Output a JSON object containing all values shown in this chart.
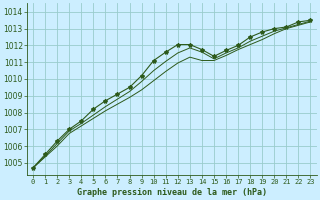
{
  "title": "Graphe pression niveau de la mer (hPa)",
  "bg_color": "#cceeff",
  "grid_color": "#99cccc",
  "line_color": "#2d5a1b",
  "xlim": [
    -0.5,
    23.5
  ],
  "ylim": [
    1004.3,
    1014.5
  ],
  "xticks": [
    0,
    1,
    2,
    3,
    4,
    5,
    6,
    7,
    8,
    9,
    10,
    11,
    12,
    13,
    14,
    15,
    16,
    17,
    18,
    19,
    20,
    21,
    22,
    23
  ],
  "yticks": [
    1005,
    1006,
    1007,
    1008,
    1009,
    1010,
    1011,
    1012,
    1013,
    1014
  ],
  "series1": [
    1004.7,
    1005.5,
    1006.3,
    1007.0,
    1007.5,
    1008.2,
    1008.7,
    1009.1,
    1009.5,
    1010.2,
    1011.1,
    1011.6,
    1012.05,
    1012.05,
    1011.75,
    1011.35,
    1011.7,
    1012.0,
    1012.5,
    1012.8,
    1013.0,
    1013.1,
    1013.4,
    1013.5
  ],
  "series2": [
    1004.7,
    1005.4,
    1006.15,
    1006.9,
    1007.35,
    1007.85,
    1008.35,
    1008.8,
    1009.25,
    1009.85,
    1010.5,
    1011.05,
    1011.55,
    1011.85,
    1011.6,
    1011.2,
    1011.55,
    1011.85,
    1012.25,
    1012.55,
    1012.85,
    1013.05,
    1013.25,
    1013.45
  ],
  "series3": [
    1004.7,
    1005.35,
    1006.0,
    1006.75,
    1007.2,
    1007.65,
    1008.1,
    1008.5,
    1008.9,
    1009.35,
    1009.9,
    1010.45,
    1010.95,
    1011.3,
    1011.1,
    1011.1,
    1011.4,
    1011.75,
    1012.05,
    1012.35,
    1012.7,
    1013.0,
    1013.2,
    1013.4
  ],
  "tick_fontsize": 5.5,
  "xlabel_fontsize": 6.0,
  "linewidth_main": 0.8,
  "linewidth_sub": 0.7,
  "marker_size": 3.0
}
